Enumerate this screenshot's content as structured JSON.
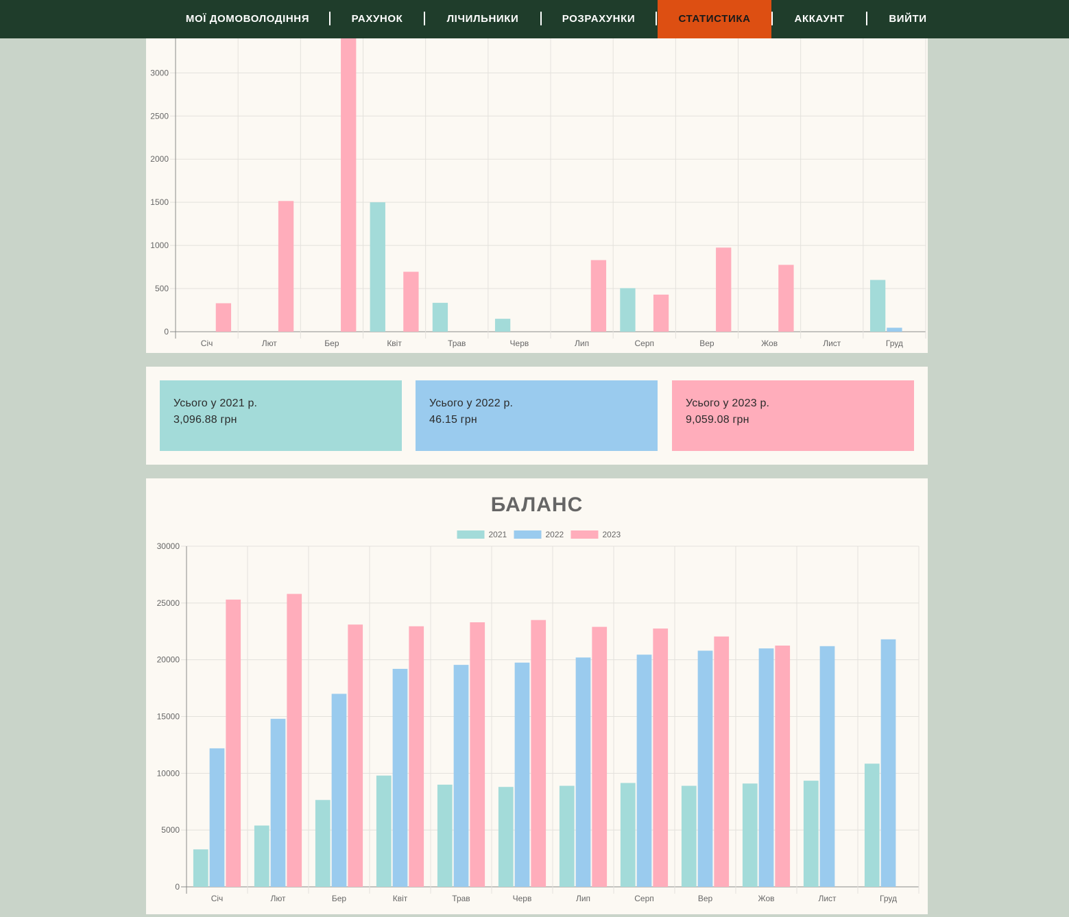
{
  "nav": {
    "items": [
      {
        "label": "Мої домоволодіння",
        "active": false
      },
      {
        "label": "Рахунок",
        "active": false
      },
      {
        "label": "Лічильники",
        "active": false
      },
      {
        "label": "Розрахунки",
        "active": false
      },
      {
        "label": "Статистика",
        "active": true
      },
      {
        "label": "Аккаунт",
        "active": false
      },
      {
        "label": "Вийти",
        "active": false
      }
    ]
  },
  "totals": [
    {
      "label": "Усього у 2021 р.",
      "value": "3,096.88 грн",
      "color": "#a3dbd9"
    },
    {
      "label": "Усього у 2022 р.",
      "value": "46.15 грн",
      "color": "#9acbee"
    },
    {
      "label": "Усього у 2023 р.",
      "value": "9,059.08 грн",
      "color": "#ffadbb"
    }
  ],
  "chart_data": [
    {
      "type": "bar",
      "categories": [
        "Січ",
        "Лют",
        "Бер",
        "Квіт",
        "Трав",
        "Черв",
        "Лип",
        "Серп",
        "Вер",
        "Жов",
        "Лист",
        "Груд"
      ],
      "ylim": [
        0,
        3400
      ],
      "yticks": [
        0,
        500,
        1000,
        1500,
        2000,
        2500,
        3000
      ],
      "grid": true,
      "series": [
        {
          "name": "2021",
          "color": "#a3dbd9",
          "values": [
            0,
            0,
            0,
            1500,
            335,
            150,
            0,
            505,
            0,
            0,
            0,
            600
          ]
        },
        {
          "name": "2022",
          "color": "#9acbee",
          "values": [
            0,
            0,
            0,
            0,
            0,
            0,
            0,
            0,
            0,
            0,
            0,
            46
          ]
        },
        {
          "name": "2023",
          "color": "#ffadbb",
          "values": [
            330,
            1515,
            3400,
            695,
            0,
            0,
            830,
            430,
            975,
            775,
            0,
            0
          ]
        }
      ]
    },
    {
      "type": "bar",
      "title": "БАЛАНС",
      "categories": [
        "Січ",
        "Лют",
        "Бер",
        "Квіт",
        "Трав",
        "Черв",
        "Лип",
        "Серп",
        "Вер",
        "Жов",
        "Лист",
        "Груд"
      ],
      "ylim": [
        0,
        30000
      ],
      "yticks": [
        0,
        5000,
        10000,
        15000,
        20000,
        25000,
        30000
      ],
      "grid": true,
      "legend": "top",
      "series": [
        {
          "name": "2021",
          "color": "#a3dbd9",
          "values": [
            3300,
            5400,
            7650,
            9800,
            9000,
            8800,
            8900,
            9150,
            8900,
            9100,
            9350,
            10850
          ]
        },
        {
          "name": "2022",
          "color": "#9acbee",
          "values": [
            12200,
            14800,
            17000,
            19200,
            19550,
            19750,
            20200,
            20450,
            20800,
            21000,
            21200,
            21800
          ]
        },
        {
          "name": "2023",
          "color": "#ffadbb",
          "values": [
            25300,
            25800,
            23100,
            22950,
            23300,
            23500,
            22900,
            22750,
            22050,
            21250,
            0,
            0
          ]
        }
      ]
    }
  ]
}
